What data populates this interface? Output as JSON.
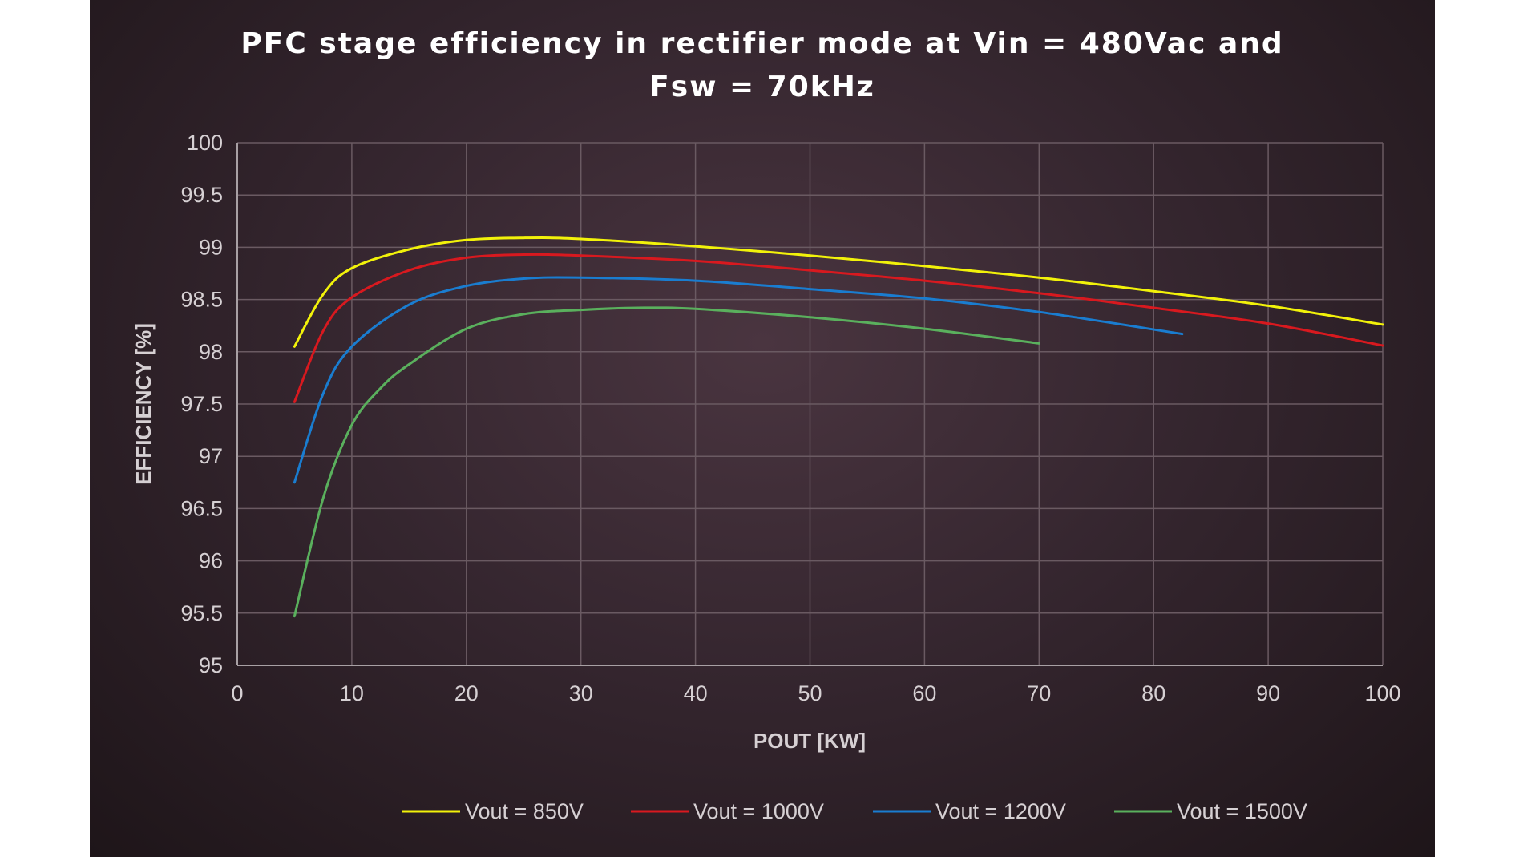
{
  "chart_data": {
    "type": "line",
    "title": "PFC stage efficiency in rectifier mode at Vin = 480Vac and",
    "subtitle": "Fsw = 70kHz",
    "xlabel": "POUT [KW]",
    "ylabel": "EFFICIENCY [%]",
    "xlim": [
      0,
      100
    ],
    "ylim": [
      95,
      100
    ],
    "xticks": [
      "0",
      "10",
      "20",
      "30",
      "40",
      "50",
      "60",
      "70",
      "80",
      "90",
      "100"
    ],
    "yticks": [
      "95",
      "95.5",
      "96",
      "96.5",
      "97",
      "97.5",
      "98",
      "98.5",
      "99",
      "99.5",
      "100"
    ],
    "grid": true,
    "legend_position": "bottom",
    "series": [
      {
        "name": "Vout = 850V",
        "color": "#f2f20a",
        "x": [
          5,
          7.5,
          10,
          15,
          20,
          25,
          30,
          40,
          50,
          60,
          70,
          80,
          90,
          100
        ],
        "values": [
          98.05,
          98.55,
          98.8,
          98.98,
          99.07,
          99.09,
          99.08,
          99.01,
          98.92,
          98.82,
          98.71,
          98.58,
          98.44,
          98.26
        ]
      },
      {
        "name": "Vout = 1000V",
        "color": "#d8191f",
        "x": [
          5,
          7.5,
          10,
          15,
          20,
          25,
          30,
          40,
          50,
          60,
          70,
          80,
          90,
          100
        ],
        "values": [
          97.52,
          98.2,
          98.52,
          98.78,
          98.9,
          98.93,
          98.92,
          98.87,
          98.78,
          98.68,
          98.56,
          98.42,
          98.27,
          98.06
        ]
      },
      {
        "name": "Vout = 1200V",
        "color": "#1a7dd0",
        "x": [
          5,
          7.5,
          10,
          15,
          20,
          25,
          30,
          40,
          50,
          60,
          70,
          82.5
        ],
        "values": [
          96.75,
          97.6,
          98.05,
          98.45,
          98.63,
          98.7,
          98.71,
          98.68,
          98.6,
          98.51,
          98.38,
          98.17
        ]
      },
      {
        "name": "Vout = 1500V",
        "color": "#5ab05d",
        "x": [
          5,
          7.5,
          10,
          12.5,
          15,
          20,
          25,
          30,
          35,
          40,
          50,
          60,
          70
        ],
        "values": [
          95.47,
          96.6,
          97.3,
          97.65,
          97.88,
          98.22,
          98.36,
          98.4,
          98.42,
          98.41,
          98.33,
          98.22,
          98.08
        ]
      }
    ]
  }
}
